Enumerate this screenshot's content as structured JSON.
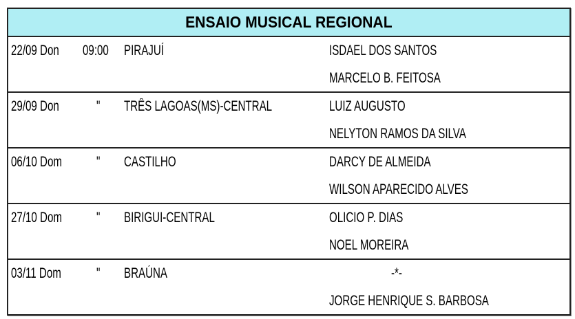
{
  "title": "ENSAIO MUSICAL REGIONAL",
  "rows": [
    {
      "date": "22/09 Don",
      "time": "09:00",
      "place": "PIRAJUÍ",
      "names": [
        "ISDAEL DOS SANTOS",
        "MARCELO B. FEITOSA"
      ]
    },
    {
      "date": "29/09 Don",
      "time": "\"",
      "place": "TRÊS LAGOAS(MS)-CENTRAL",
      "names": [
        "LUIZ AUGUSTO",
        "NELYTON RAMOS DA SILVA"
      ]
    },
    {
      "date": "06/10 Dom",
      "time": "\"",
      "place": "CASTILHO",
      "names": [
        "DARCY DE ALMEIDA",
        "WILSON APARECIDO ALVES"
      ]
    },
    {
      "date": "27/10 Dom",
      "time": "\"",
      "place": "BIRIGUI-CENTRAL",
      "names": [
        "OLICIO P. DIAS",
        "NOEL MOREIRA"
      ]
    },
    {
      "date": "03/11 Dom",
      "time": "\"",
      "place": "BRAÚNA",
      "names": [
        "-*-",
        "JORGE HENRIQUE S. BARBOSA"
      ]
    }
  ],
  "colors": {
    "header_bg": "#b0eef4",
    "border": "#222222"
  }
}
